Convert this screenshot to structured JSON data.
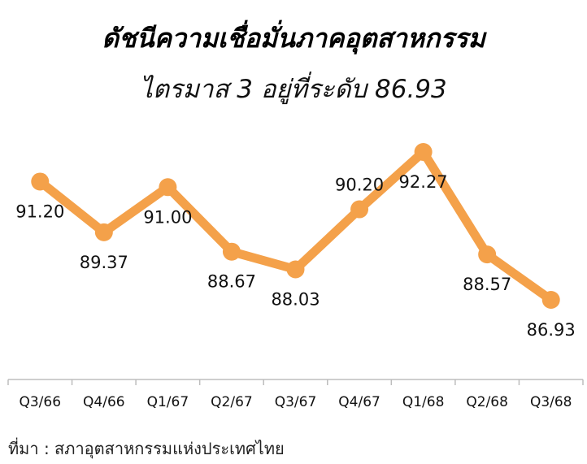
{
  "title": "ดัชนีความเชื่อมั่นภาคอุตสาหกรรม",
  "subtitle": "ไตรมาส 3 อยู่ที่ระดับ 86.93",
  "source": "ที่มา : สภาอุตสาหกรรมแห่งประเทศไทย",
  "chart_data": {
    "type": "line",
    "title": "ดัชนีความเชื่อมั่นภาคอุตสาหกรรม",
    "subtitle": "ไตรมาส 3 อยู่ที่ระดับ 86.93",
    "categories": [
      "Q3/66",
      "Q4/66",
      "Q1/67",
      "Q2/67",
      "Q3/67",
      "Q4/67",
      "Q1/68",
      "Q2/68",
      "Q3/68"
    ],
    "series": [
      {
        "values": [
          91.2,
          89.37,
          91.0,
          88.67,
          88.03,
          90.2,
          92.27,
          88.57,
          86.93
        ],
        "labels": [
          "91.20",
          "89.37",
          "91.00",
          "88.67",
          "88.03",
          "90.20",
          "92.27",
          "88.57",
          "86.93"
        ]
      }
    ],
    "label_positions": [
      "below",
      "below",
      "below",
      "below",
      "below",
      "above",
      "below",
      "below",
      "below"
    ],
    "ylim": [
      84.5,
      93.0
    ],
    "grid": false,
    "line_color": "#F4A14A"
  }
}
